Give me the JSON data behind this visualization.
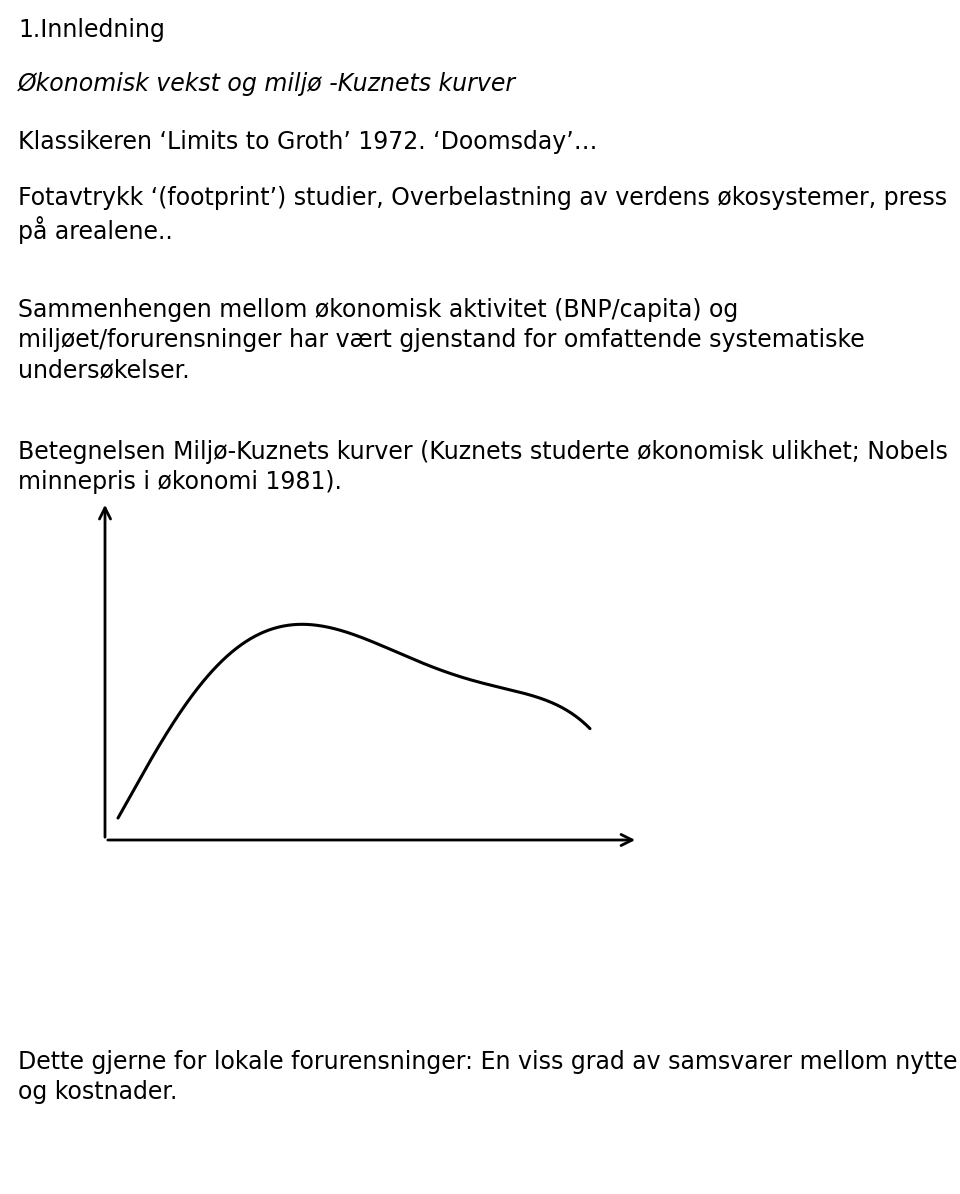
{
  "title1": "1.Innledning",
  "line2": "Økonomisk vekst og miljø -Kuznets kurver",
  "line3": "Klassikeren ‘Limits to Groth’ 1972. ‘Doomsday’…",
  "line4a": "Fotavtrykk ‘(footprint’) studier, Overbelastning av verdens økosystemer, press",
  "line4b": "på arealene..",
  "line5a": "Sammenhengen mellom økonomisk aktivitet (BNP/capita) og",
  "line5b": "miljøet/forurensninger har vært gjenstand for omfattende systematiske",
  "line5c": "undersøkelser.",
  "line6a": "Betegnelsen Miljø-Kuznets kurver (Kuznets studerte økonomisk ulikhet; Nobels",
  "line6b": "minnepris i økonomi 1981).",
  "line7a": "Dette gjerne for lokale forurensninger: En viss grad av samsvarer mellom nytte",
  "line7b": "og kostnader.",
  "curve_color": "#000000",
  "axis_color": "#000000",
  "background_color": "#ffffff",
  "text_color": "#000000",
  "font_size_title": 17,
  "font_size_italic": 17,
  "font_size_body": 17
}
